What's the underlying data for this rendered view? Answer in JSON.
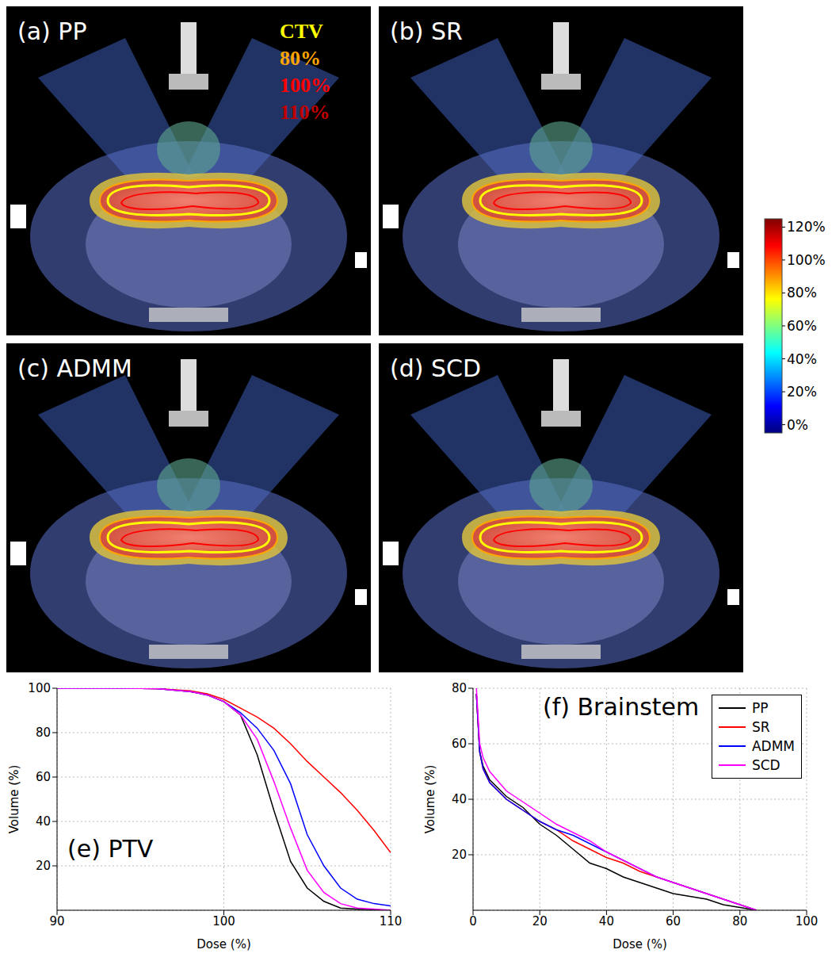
{
  "panels": [
    {
      "label": "(a) PP"
    },
    {
      "label": "(b) SR"
    },
    {
      "label": "(c) ADMM"
    },
    {
      "label": "(d) SCD"
    }
  ],
  "contour_legend": [
    {
      "label": "CTV",
      "color": "#ffff00"
    },
    {
      "label": "80%",
      "color": "#ffa500"
    },
    {
      "label": "100%",
      "color": "#ff0000"
    },
    {
      "label": "110%",
      "color": "#c00000"
    }
  ],
  "colorbar": {
    "range": [
      -5,
      125
    ],
    "ticks": [
      {
        "value": 0,
        "label": "0%"
      },
      {
        "value": 20,
        "label": "20%"
      },
      {
        "value": 40,
        "label": "40%"
      },
      {
        "value": 60,
        "label": "60%"
      },
      {
        "value": 80,
        "label": "80%"
      },
      {
        "value": 100,
        "label": "100%"
      },
      {
        "value": 120,
        "label": "120%"
      }
    ]
  },
  "chart_data": [
    {
      "type": "line",
      "title": "(e) PTV",
      "x_label": "Dose (%)",
      "y_label": "Volume (%)",
      "x": [
        90,
        92,
        94,
        96,
        98,
        99,
        100,
        101,
        102,
        103,
        104,
        105,
        106,
        107,
        108,
        109,
        110
      ],
      "series": [
        {
          "name": "PP",
          "color": "#000000",
          "values": [
            100,
            100,
            100,
            99.8,
            98.5,
            97,
            94,
            88,
            70,
            45,
            22,
            10,
            4,
            1,
            0.5,
            0.2,
            0
          ]
        },
        {
          "name": "SR",
          "color": "#ff0000",
          "values": [
            100,
            100,
            100,
            99.8,
            98.8,
            97.5,
            95,
            91,
            87,
            82,
            75,
            67,
            60,
            53,
            45,
            36,
            26
          ]
        },
        {
          "name": "ADMM",
          "color": "#0000ff",
          "values": [
            100,
            100,
            100,
            99.8,
            98.5,
            97,
            94,
            89,
            82,
            72,
            57,
            34,
            20,
            10,
            5,
            3,
            2
          ]
        },
        {
          "name": "SCD",
          "color": "#ff00ff",
          "values": [
            100,
            100,
            100,
            99.8,
            98.5,
            97,
            94,
            88,
            77,
            58,
            37,
            18,
            8,
            3,
            1,
            0.5,
            0
          ]
        }
      ],
      "xlim": [
        90,
        110
      ],
      "xticks": [
        90,
        100,
        110
      ],
      "ylim": [
        0,
        100
      ],
      "yticks": [
        20,
        40,
        60,
        80,
        100
      ],
      "grid": true
    },
    {
      "type": "line",
      "title": "(f) Brainstem",
      "x_label": "Dose (%)",
      "y_label": "Volume (%)",
      "x": [
        1,
        2,
        3,
        5,
        10,
        15,
        20,
        25,
        30,
        35,
        40,
        45,
        50,
        55,
        60,
        65,
        70,
        75,
        80,
        85
      ],
      "series": [
        {
          "name": "PP",
          "color": "#000000",
          "values": [
            78,
            57,
            52,
            47,
            41,
            37,
            31,
            27,
            22,
            17,
            15,
            12,
            10,
            8,
            6,
            5,
            4,
            2,
            1,
            0
          ]
        },
        {
          "name": "SR",
          "color": "#ff0000",
          "values": [
            78,
            57,
            51,
            46,
            40,
            36,
            32,
            29,
            25,
            22,
            19,
            17,
            14,
            12,
            10,
            8,
            6,
            4,
            2,
            0
          ]
        },
        {
          "name": "ADMM",
          "color": "#0000ff",
          "values": [
            78,
            57,
            51,
            46,
            40,
            36,
            32,
            29,
            27,
            24,
            21,
            18,
            15,
            12,
            10,
            8,
            6,
            4,
            2,
            0
          ]
        },
        {
          "name": "SCD",
          "color": "#ff00ff",
          "values": [
            80,
            60,
            55,
            50,
            43,
            39,
            35,
            31,
            28,
            25,
            21,
            18,
            15,
            12,
            10,
            8,
            6,
            4,
            2,
            0
          ]
        }
      ],
      "xlim": [
        0,
        100
      ],
      "xticks": [
        0,
        20,
        40,
        60,
        80,
        100
      ],
      "ylim": [
        0,
        80
      ],
      "yticks": [
        20,
        40,
        60,
        80
      ],
      "grid": true,
      "legend": "upper right"
    }
  ]
}
